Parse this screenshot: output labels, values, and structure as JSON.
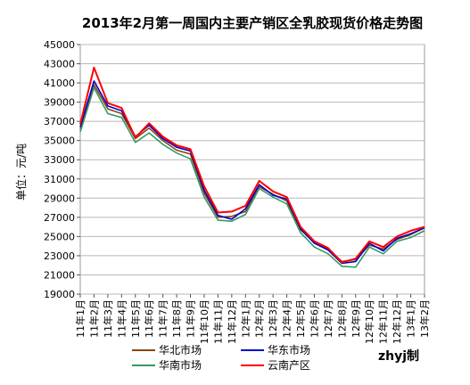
{
  "chart_data": {
    "type": "line",
    "title": "2013年2月第一周国内主要产销区全乳胶现货价格走势图",
    "ylabel": "单位：元/吨",
    "xlabel": "",
    "ylim": [
      19000,
      45000
    ],
    "yticks": [
      19000,
      21000,
      23000,
      25000,
      27000,
      29000,
      31000,
      33000,
      35000,
      37000,
      39000,
      41000,
      43000,
      45000
    ],
    "categories": [
      "11年1月",
      "11年2月",
      "11年3月",
      "11年4月",
      "11年5月",
      "11年6月",
      "11年7月",
      "11年8月",
      "11年9月",
      "11年10月",
      "11年11月",
      "11年12月",
      "12年1月",
      "12年2月",
      "12年3月",
      "12年4月",
      "12年5月",
      "12年6月",
      "12年7月",
      "12年8月",
      "12年9月",
      "12年10月",
      "12年11月",
      "12年12月",
      "13年1月",
      "13年2月"
    ],
    "grid": true,
    "legend_position": "bottom",
    "watermark": "zhyj制",
    "series": [
      {
        "name": "华北市场",
        "color": "#8B4513",
        "values": [
          36200,
          40800,
          38300,
          37800,
          35200,
          36300,
          35000,
          34000,
          33600,
          29500,
          27000,
          27100,
          27600,
          30200,
          29400,
          28700,
          25700,
          24400,
          23700,
          22400,
          22600,
          24100,
          23700,
          24700,
          25200,
          25900
        ]
      },
      {
        "name": "华东市场",
        "color": "#0000CC",
        "values": [
          36400,
          41200,
          38600,
          38100,
          35400,
          36600,
          35200,
          34300,
          33900,
          29800,
          27200,
          26800,
          27900,
          30400,
          29300,
          28900,
          25800,
          24300,
          23600,
          22200,
          22400,
          24300,
          23500,
          24800,
          25300,
          25900
        ]
      },
      {
        "name": "华南市场",
        "color": "#339966",
        "values": [
          35900,
          40500,
          37800,
          37400,
          34800,
          35800,
          34600,
          33700,
          33100,
          29100,
          26700,
          26600,
          27300,
          30000,
          29100,
          28400,
          25400,
          23900,
          23200,
          21900,
          21800,
          23900,
          23200,
          24500,
          24900,
          25600
        ]
      },
      {
        "name": "云南产区",
        "color": "#FF0000",
        "values": [
          36700,
          42600,
          38900,
          38400,
          35300,
          36800,
          35400,
          34500,
          34100,
          30200,
          27500,
          27600,
          28200,
          30800,
          29700,
          29100,
          26000,
          24500,
          23800,
          22300,
          22700,
          24500,
          23900,
          25000,
          25600,
          26000
        ]
      }
    ]
  }
}
